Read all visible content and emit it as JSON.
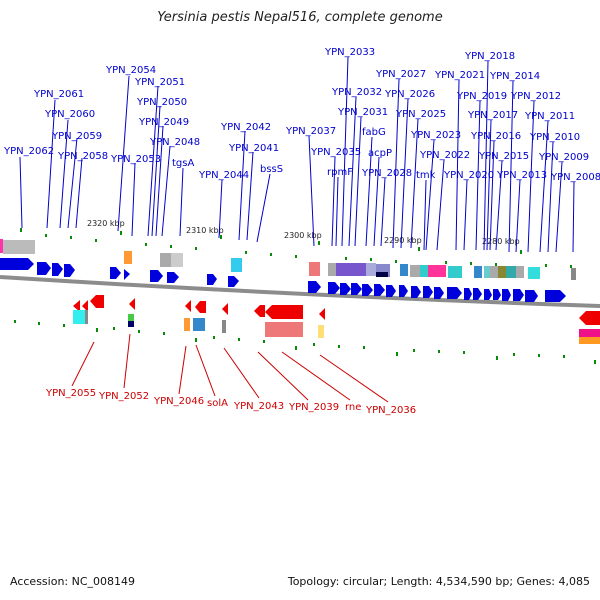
{
  "title": "Yersinia pestis Nepal516, complete genome",
  "footer": {
    "accession": "Accession: NC_008149",
    "summary": "Topology: circular; Length: 4,534,590 bp; Genes: 4,085"
  },
  "colors": {
    "forward": "#0000dd",
    "reverse": "#ee0000",
    "backbone": "#8c8c8c",
    "tick": "#0a8a0a"
  },
  "kbp_labels": [
    "2320 kbp",
    "2310 kbp",
    "2300 kbp",
    "2290 kbp",
    "2280 kbp"
  ],
  "forward_genes": [
    "YPN_2062",
    "YPN_2061",
    "YPN_2060",
    "YPN_2059",
    "YPN_2058",
    "YPN_2054",
    "YPN_2053",
    "YPN_2051",
    "YPN_2050",
    "YPN_2049",
    "YPN_2048",
    "tgsA",
    "YPN_2044",
    "YPN_2042",
    "YPN_2041",
    "bssS",
    "YPN_2037",
    "YPN_2035",
    "rpmF",
    "YPN_2033",
    "YPN_2032",
    "YPN_2031",
    "fabG",
    "acpP",
    "YPN_2028",
    "YPN_2027",
    "YPN_2026",
    "YPN_2025",
    "YPN_2023",
    "tmk",
    "YPN_2022",
    "YPN_2021",
    "YPN_2020",
    "YPN_2019",
    "YPN_2018",
    "YPN_2017",
    "YPN_2016",
    "YPN_2015",
    "YPN_2014",
    "YPN_2013",
    "YPN_2012",
    "YPN_2011",
    "YPN_2010",
    "YPN_2009",
    "YPN_2008"
  ],
  "reverse_genes": [
    "YPN_2055",
    "YPN_2052",
    "YPN_2046",
    "solA",
    "YPN_2043",
    "YPN_2039",
    "rne",
    "YPN_2036"
  ]
}
